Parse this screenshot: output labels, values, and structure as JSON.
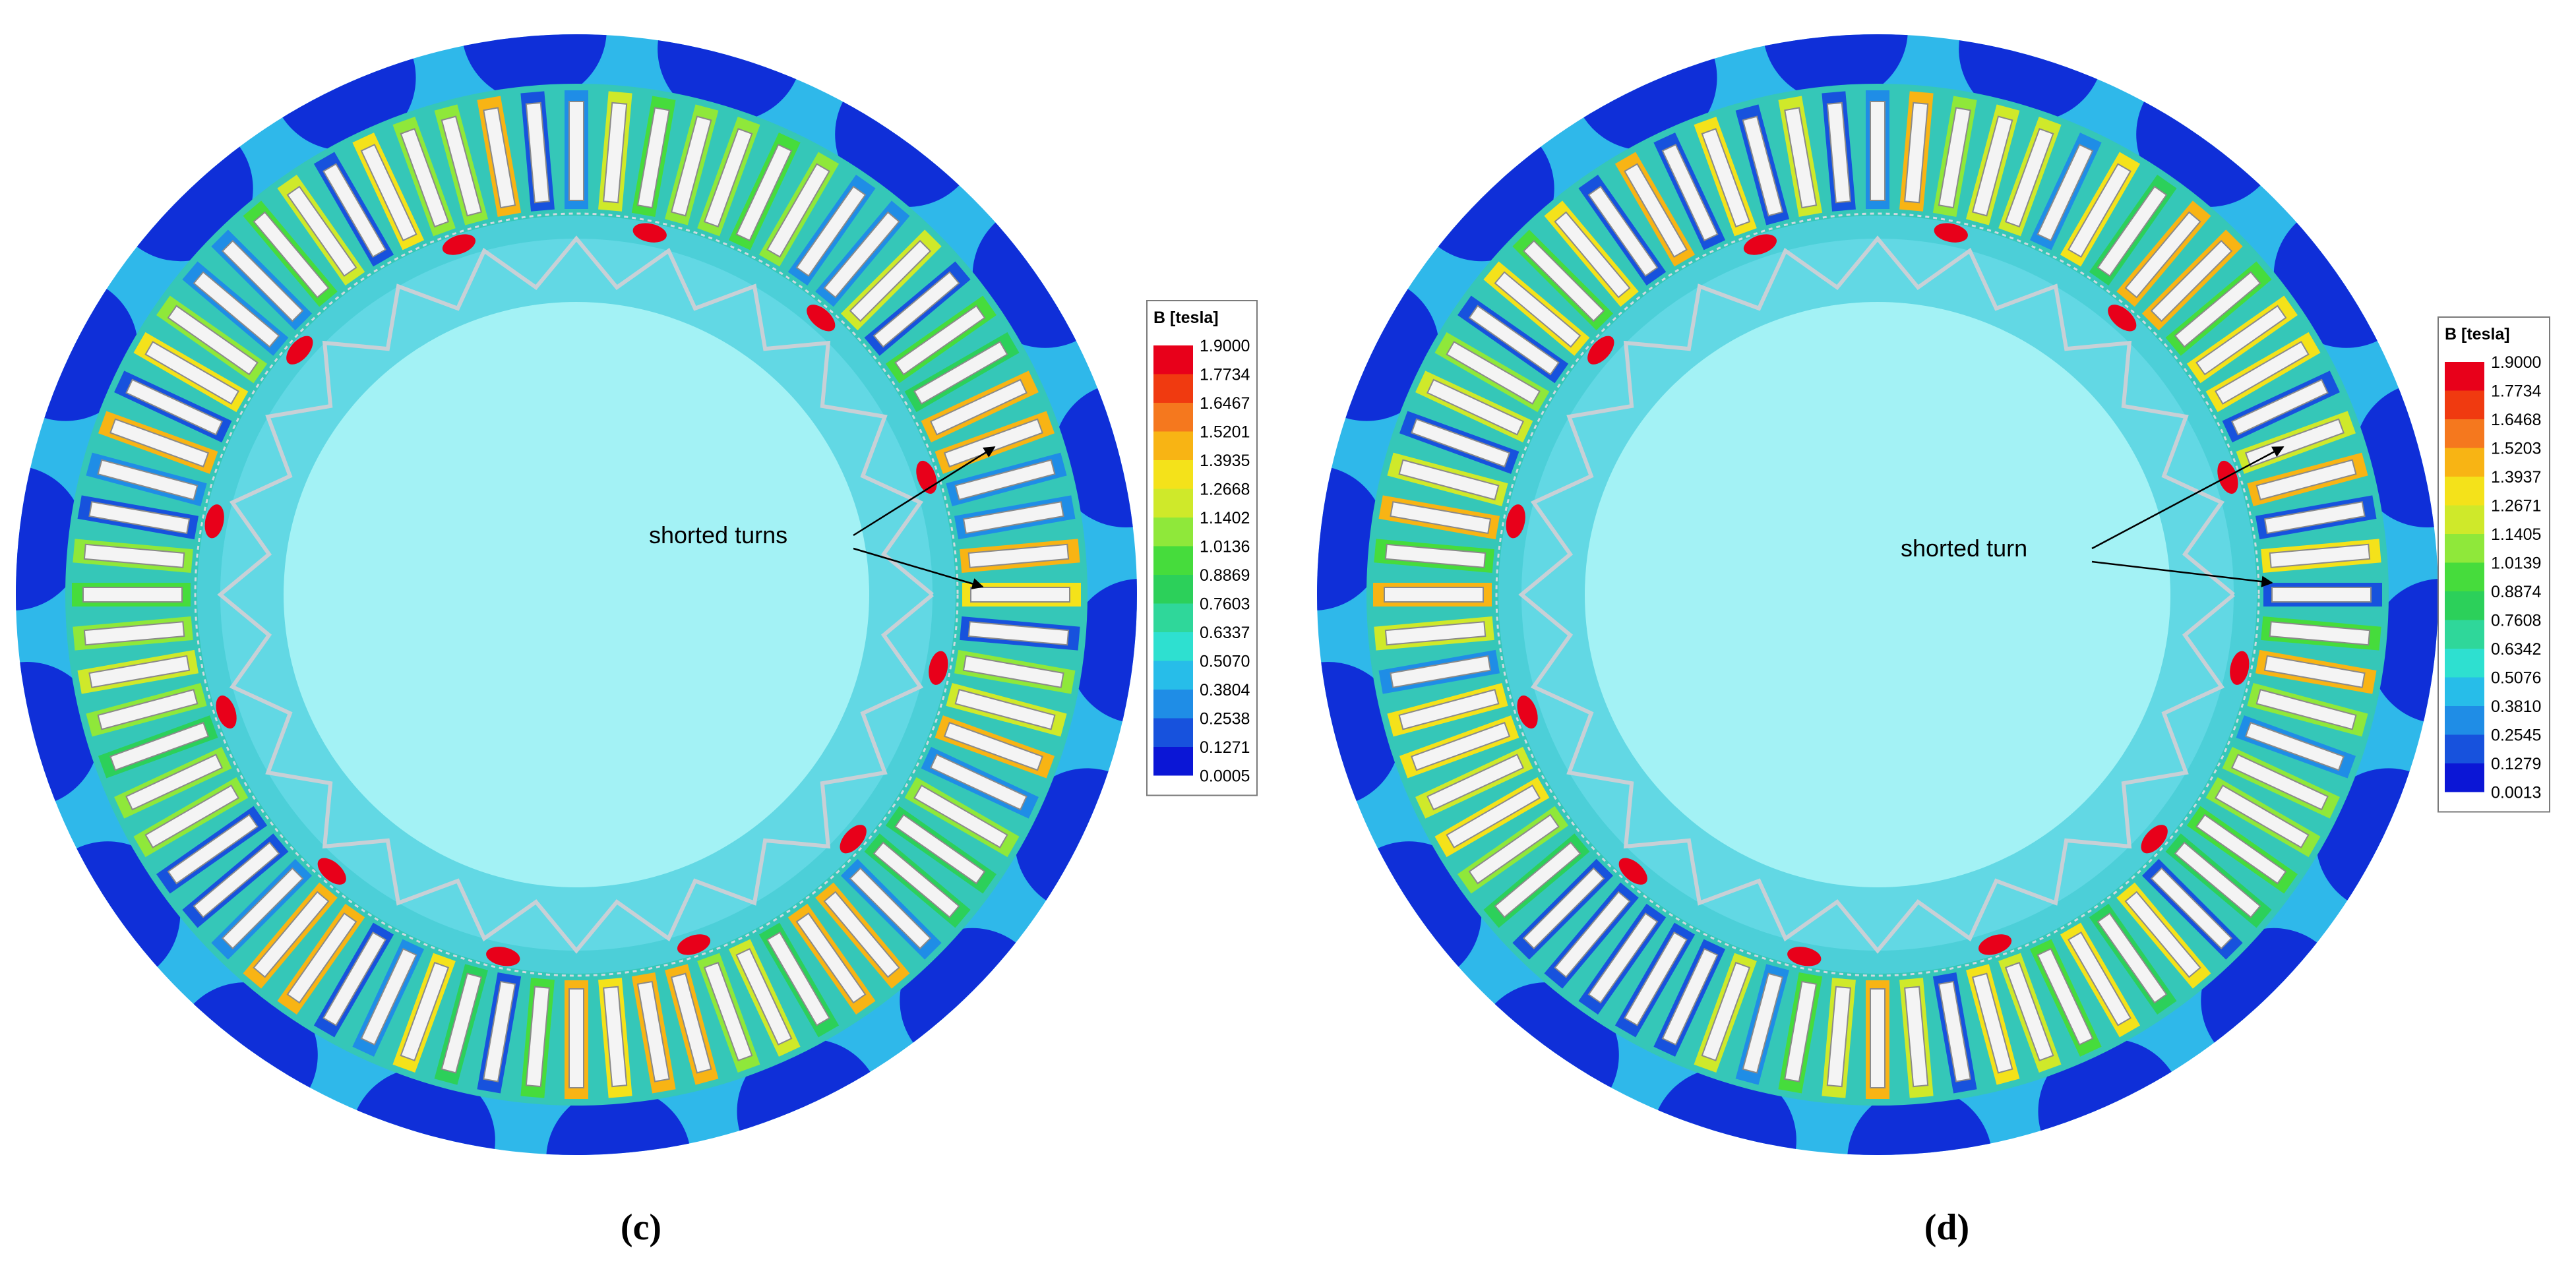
{
  "panels": [
    {
      "caption": "(c)",
      "annotation": "shorted turns",
      "legend": {
        "title": "B [tesla]",
        "labels": [
          "1.9000",
          "1.7734",
          "1.6467",
          "1.5201",
          "1.3935",
          "1.2668",
          "1.1402",
          "1.0136",
          "0.8869",
          "0.7603",
          "0.6337",
          "0.5070",
          "0.3804",
          "0.2538",
          "0.1271",
          "0.0005"
        ]
      }
    },
    {
      "caption": "(d)",
      "annotation": "shorted turn",
      "legend": {
        "title": "B [tesla]",
        "labels": [
          "1.9000",
          "1.7734",
          "1.6468",
          "1.5203",
          "1.3937",
          "1.2671",
          "1.1405",
          "1.0139",
          "0.8874",
          "0.7608",
          "0.6342",
          "0.5076",
          "0.3810",
          "0.2545",
          "0.1279",
          "0.0013"
        ]
      }
    }
  ]
}
